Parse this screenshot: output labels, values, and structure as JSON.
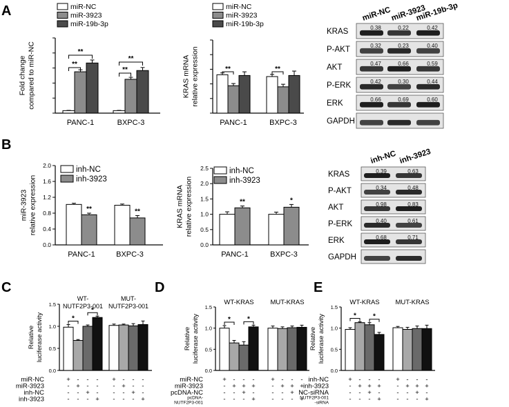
{
  "panels": {
    "A": "A",
    "B": "B",
    "C": "C",
    "D": "D",
    "E": "E"
  },
  "colors": {
    "white": "#ffffff",
    "gray": "#8c8c8c",
    "dark": "#4a4a4a",
    "black": "#111111",
    "lightgray": "#a8a8a8",
    "darkgray": "#6a6a6a"
  },
  "sig": "**",
  "sig1": "*",
  "chart_data": [
    {
      "id": "A1",
      "type": "bar",
      "title": "",
      "ylabel": "Fold change compared to miR-NC",
      "ylabel_lines": [
        "Fold change",
        "compared to miR-NC"
      ],
      "categories": [
        "PANC-1",
        "BXPC-3"
      ],
      "series": [
        {
          "name": "miR-NC",
          "values": [
            1.0,
            1.0
          ],
          "err": [
            0.1,
            0.1
          ]
        },
        {
          "name": "miR-3923",
          "values": [
            16.5,
            13.5
          ],
          "err": [
            0.8,
            0.8
          ]
        },
        {
          "name": "miR-19b-3p",
          "values": [
            20.0,
            17.0
          ],
          "err": [
            1.2,
            1.2
          ]
        }
      ],
      "ylim": [
        0,
        30
      ]
    },
    {
      "id": "A2",
      "type": "bar",
      "ylabel": "KRAS mRNA relative expression",
      "ylabel_lines": [
        "KRAS mRNA",
        "relative expression"
      ],
      "categories": [
        "PANC-1",
        "BXPC-3"
      ],
      "series": [
        {
          "name": "miR-NC",
          "values": [
            1.05,
            1.0
          ],
          "err": [
            0.05,
            0.06
          ]
        },
        {
          "name": "miR-3923",
          "values": [
            0.75,
            0.72
          ],
          "err": [
            0.06,
            0.07
          ]
        },
        {
          "name": "miR-19b-3p",
          "values": [
            1.03,
            1.03
          ],
          "err": [
            0.1,
            0.12
          ]
        }
      ],
      "ylim": [
        0,
        2.0
      ]
    },
    {
      "id": "B1",
      "type": "bar",
      "ylabel": "miR-3923 relative expression",
      "ylabel_lines": [
        "miR-3923",
        "relative expression"
      ],
      "categories": [
        "PANC-1",
        "BXPC-3"
      ],
      "yticks": [
        "0.0",
        "0.4",
        "0.8",
        "1.2",
        "1.6",
        "2.0"
      ],
      "series": [
        {
          "name": "inh-NC",
          "values": [
            1.02,
            1.0
          ],
          "err": [
            0.03,
            0.03
          ]
        },
        {
          "name": "inh-3923",
          "values": [
            0.76,
            0.68
          ],
          "err": [
            0.04,
            0.06
          ]
        }
      ],
      "ylim": [
        0,
        2.0
      ]
    },
    {
      "id": "B2",
      "type": "bar",
      "ylabel": "KRAS mRNA relative expression",
      "ylabel_lines": [
        "KRAS mRNA",
        "relative expression"
      ],
      "categories": [
        "PANC-1",
        "BXPC-3"
      ],
      "yticks": [
        "0.0",
        "0.5",
        "1.0",
        "1.5",
        "2.0",
        "2.5"
      ],
      "series": [
        {
          "name": "inh-NC",
          "values": [
            1.0,
            1.0
          ],
          "err": [
            0.08,
            0.07
          ]
        },
        {
          "name": "inh-3923",
          "values": [
            1.21,
            1.23
          ],
          "err": [
            0.06,
            0.09
          ]
        }
      ],
      "ylim": [
        0,
        2.5
      ]
    },
    {
      "id": "C",
      "type": "bar",
      "ylabel": "Relative luciferase activity",
      "ylabel_lines": [
        "Relative",
        "luciferase activity"
      ],
      "groups": [
        "WT-\nNUTF2P3-001",
        "MUT-\nNUTF2P3-001"
      ],
      "group_lines": [
        [
          "WT-",
          "NUTF2P3-001"
        ],
        [
          "MUT-",
          "NUTF2P3-001"
        ]
      ],
      "bar_values": [
        0.98,
        0.68,
        1.0,
        1.2,
        1.02,
        1.03,
        1.01,
        1.04
      ],
      "bar_err": [
        0.06,
        0.02,
        0.03,
        0.03,
        0.03,
        0.02,
        0.05,
        0.08
      ],
      "yticks": [
        "0.0",
        "0.5",
        "1.0",
        "1.5"
      ],
      "ylim": [
        0,
        1.5
      ],
      "conditions": [
        {
          "label": "miR-NC",
          "marks": [
            "+",
            "-",
            "-",
            "-",
            "+",
            "-",
            "-",
            "-"
          ]
        },
        {
          "label": "miR-3923",
          "marks": [
            "-",
            "+",
            "-",
            "-",
            "-",
            "+",
            "-",
            "-"
          ]
        },
        {
          "label": "inh-NC",
          "marks": [
            "-",
            "-",
            "+",
            "-",
            "-",
            "-",
            "+",
            "-"
          ]
        },
        {
          "label": "inh-3923",
          "marks": [
            "-",
            "-",
            "-",
            "+",
            "-",
            "-",
            "-",
            "+"
          ]
        }
      ]
    },
    {
      "id": "D",
      "type": "bar",
      "ylabel": "Relative luciferase activity",
      "ylabel_lines": [
        "Relative",
        "luciferase activity"
      ],
      "groups": [
        "WT-KRAS",
        "MUT-KRAS"
      ],
      "bar_values": [
        1.0,
        0.65,
        0.6,
        1.03,
        1.0,
        0.99,
        1.01,
        1.02
      ],
      "bar_err": [
        0.06,
        0.06,
        0.08,
        0.04,
        0.05,
        0.04,
        0.04,
        0.05
      ],
      "yticks": [
        "0.0",
        "0.5",
        "1.0",
        "1.5"
      ],
      "ylim": [
        0,
        1.5
      ],
      "conditions": [
        {
          "label": "miR-NC",
          "marks": [
            "+",
            "-",
            "-",
            "-",
            "+",
            "-",
            "-",
            "-"
          ]
        },
        {
          "label": "miR-3923",
          "marks": [
            "-",
            "+",
            "+",
            "+",
            "-",
            "+",
            "+",
            "+"
          ]
        },
        {
          "label": "pcDNA-NC",
          "marks": [
            "-",
            "-",
            "+",
            "-",
            "-",
            "-",
            "+",
            "-"
          ]
        },
        {
          "label": "pcDNA-\nNUTF2P3-001",
          "label_lines": [
            "pcDNA-",
            "NUTF2P3-001"
          ],
          "marks": [
            "-",
            "-",
            "-",
            "+",
            "-",
            "-",
            "-",
            "+"
          ]
        }
      ]
    },
    {
      "id": "E",
      "type": "bar",
      "ylabel": "Relative luciferase activity",
      "ylabel_lines": [
        "Relative",
        "luciferase activity"
      ],
      "groups": [
        "WT-KRAS",
        "MUT-KRAS"
      ],
      "bar_values": [
        0.97,
        1.13,
        1.08,
        0.85,
        1.01,
        0.97,
        0.99,
        0.99
      ],
      "bar_err": [
        0.04,
        0.02,
        0.05,
        0.05,
        0.03,
        0.05,
        0.06,
        0.08
      ],
      "yticks": [
        "0.0",
        "0.5",
        "1.0",
        "1.5"
      ],
      "ylim": [
        0,
        1.5
      ],
      "conditions": [
        {
          "label": "inh-NC",
          "marks": [
            "+",
            "-",
            "-",
            "-",
            "+",
            "-",
            "-",
            "-"
          ]
        },
        {
          "label": "inh-3923",
          "marks": [
            "-",
            "+",
            "+",
            "+",
            "-",
            "+",
            "+",
            "+"
          ]
        },
        {
          "label": "NC-siRNA",
          "marks": [
            "-",
            "-",
            "+",
            "-",
            "-",
            "-",
            "+",
            "-"
          ]
        },
        {
          "label": "NUTF2P3-001\n-siRNA",
          "label_lines": [
            "NUTF2P3-001",
            "-siRNA"
          ],
          "marks": [
            "-",
            "-",
            "-",
            "+",
            "-",
            "-",
            "-",
            "+"
          ]
        }
      ]
    }
  ],
  "blotA": {
    "lanes": [
      "miR-NC",
      "miR-3923",
      "miR-19b-3p"
    ],
    "rows": [
      {
        "name": "KRAS",
        "vals": [
          "0.38",
          "0.22",
          "0.42"
        ]
      },
      {
        "name": "P-AKT",
        "vals": [
          "0.32",
          "0.23",
          "0.40"
        ]
      },
      {
        "name": "AKT",
        "vals": [
          "0.47",
          "0.66",
          "0.59"
        ]
      },
      {
        "name": "P-ERK",
        "vals": [
          "0.42",
          "0.30",
          "0.44"
        ]
      },
      {
        "name": "ERK",
        "vals": [
          "0.66",
          "0.69",
          "0.60"
        ]
      },
      {
        "name": "GAPDH",
        "vals": []
      }
    ]
  },
  "blotB": {
    "lanes": [
      "inh-NC",
      "inh-3923"
    ],
    "rows": [
      {
        "name": "KRAS",
        "vals": [
          "0.39",
          "0.63"
        ]
      },
      {
        "name": "P-AKT",
        "vals": [
          "0.34",
          "0.48"
        ]
      },
      {
        "name": "AKT",
        "vals": [
          "0.98",
          "0.83"
        ]
      },
      {
        "name": "P-ERK",
        "vals": [
          "0.40",
          "0.61"
        ]
      },
      {
        "name": "ERK",
        "vals": [
          "0.68",
          "0.71"
        ]
      },
      {
        "name": "GAPDH",
        "vals": []
      }
    ]
  }
}
